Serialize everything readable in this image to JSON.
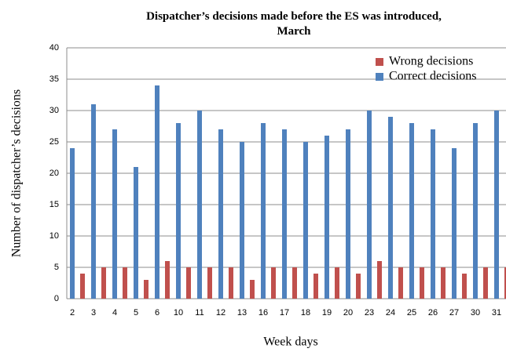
{
  "chart_data": {
    "type": "bar",
    "title": "Dispatcher’s decisions made before the ES was introduced, March",
    "xlabel": "Week days",
    "ylabel": "Number of dispatcher’s decisions",
    "categories": [
      "2",
      "3",
      "4",
      "5",
      "6",
      "10",
      "11",
      "12",
      "13",
      "16",
      "17",
      "18",
      "19",
      "20",
      "23",
      "24",
      "25",
      "26",
      "27",
      "30",
      "31"
    ],
    "series": [
      {
        "name": "Correct decisions",
        "color": "#4f81bd",
        "values": [
          24,
          31,
          27,
          21,
          34,
          28,
          30,
          27,
          25,
          28,
          27,
          25,
          26,
          27,
          30,
          29,
          28,
          27,
          24,
          28,
          30
        ]
      },
      {
        "name": "Wrong decisions",
        "color": "#c0504d",
        "values": [
          4,
          5,
          5,
          3,
          6,
          5,
          5,
          5,
          3,
          5,
          5,
          4,
          5,
          4,
          6,
          5,
          5,
          5,
          4,
          5,
          5
        ]
      }
    ],
    "legend_order": [
      1,
      0
    ],
    "ylim": [
      0,
      40
    ],
    "yticks": [
      0,
      5,
      10,
      15,
      20,
      25,
      30,
      35,
      40
    ],
    "grid": true
  }
}
